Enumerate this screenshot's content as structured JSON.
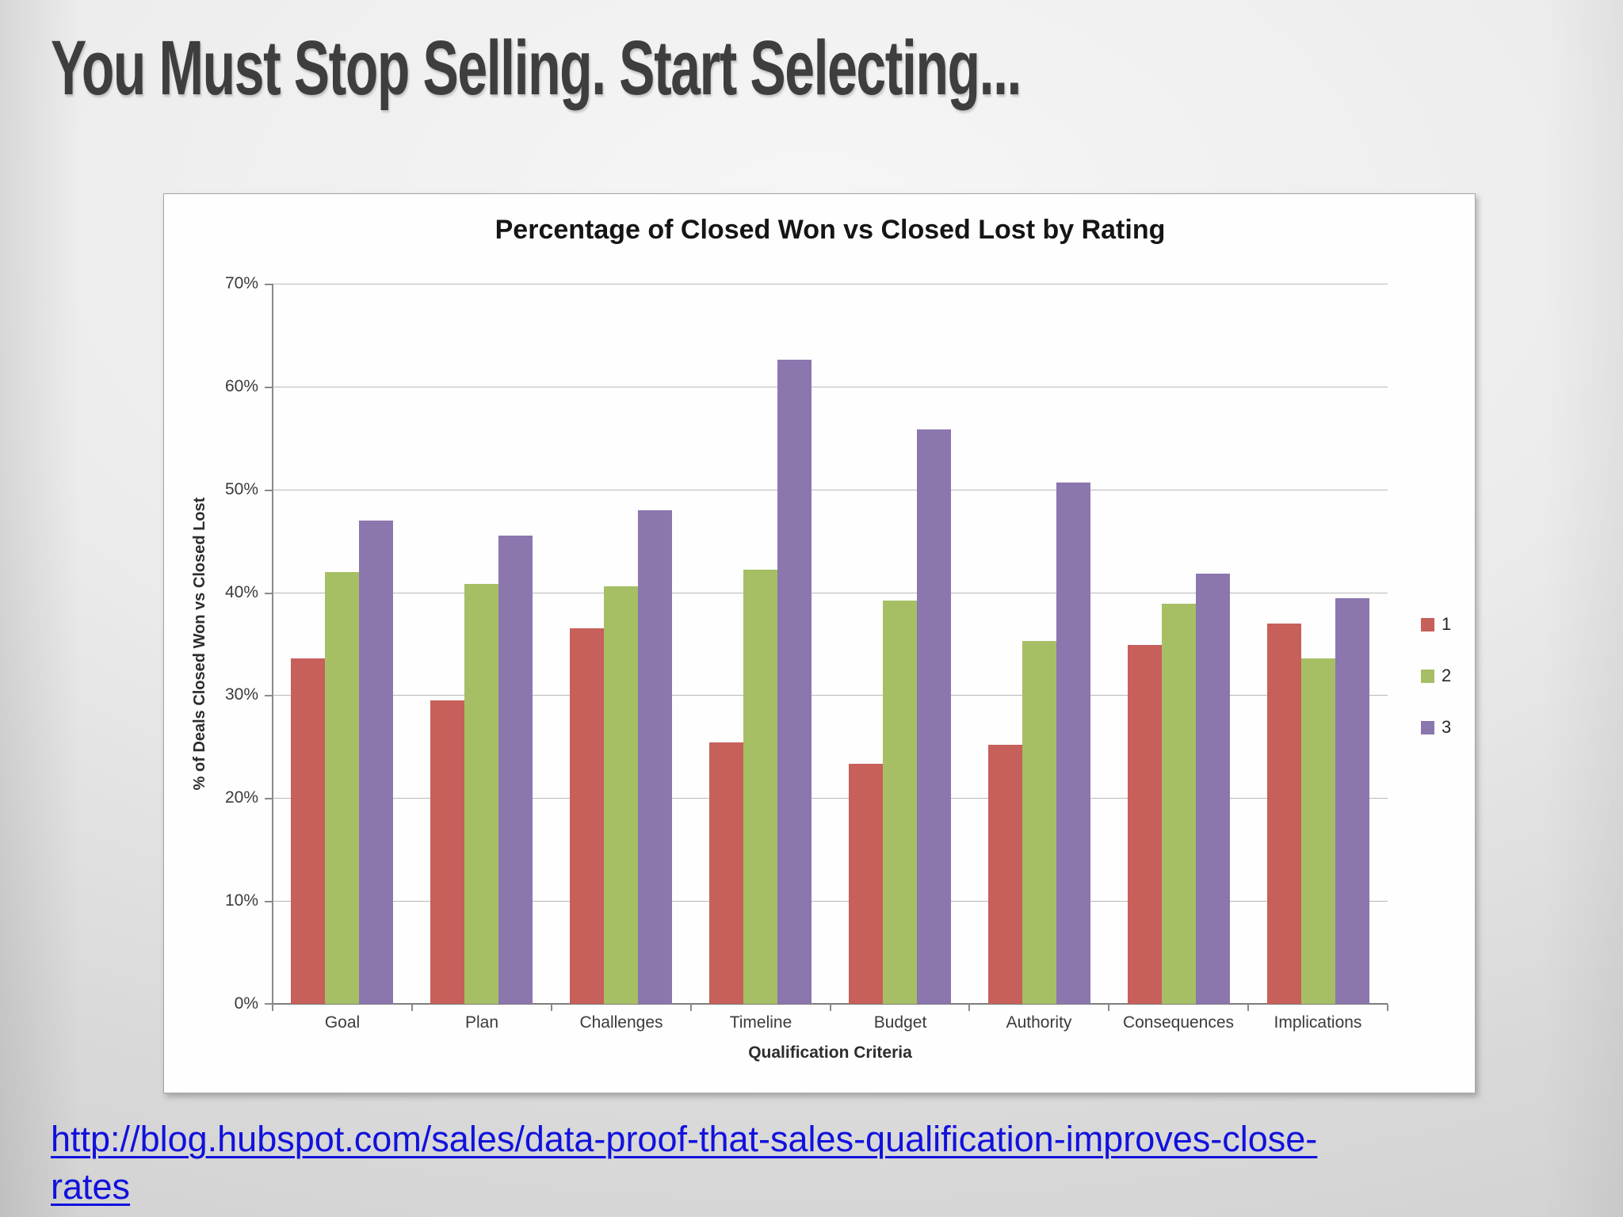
{
  "slide": {
    "title": "You Must Stop Selling. Start Selecting..."
  },
  "chart_data": {
    "type": "bar",
    "title": "Percentage of Closed Won vs Closed Lost by Rating",
    "xlabel": "Qualification Criteria",
    "ylabel": "% of Deals Closed Won vs Closed Lost",
    "categories": [
      "Goal",
      "Plan",
      "Challenges",
      "Timeline",
      "Budget",
      "Authority",
      "Consequences",
      "Implications"
    ],
    "series": [
      {
        "name": "1",
        "color": "#c75f5b",
        "values": [
          33.6,
          29.5,
          36.5,
          25.4,
          23.3,
          25.2,
          34.9,
          37.0
        ]
      },
      {
        "name": "2",
        "color": "#a6bf64",
        "values": [
          42.0,
          40.8,
          40.6,
          42.2,
          39.2,
          35.3,
          38.9,
          33.6
        ]
      },
      {
        "name": "3",
        "color": "#8b76ae",
        "values": [
          47.0,
          45.5,
          48.0,
          62.6,
          55.8,
          50.7,
          41.8,
          39.4
        ]
      }
    ],
    "ylim": [
      0,
      70
    ],
    "ytick_step": 10,
    "ytick_suffix": "%",
    "grid": true,
    "legend_position": "right",
    "colors": {
      "gridline": "#b9b9b9",
      "axis": "#8a8a8a",
      "chart_background": "#fefefe"
    }
  },
  "link": {
    "href": "http://blog.hubspot.com/sales/data-proof-that-sales-qualification-improves-close-rates",
    "lines": [
      "http://blog.hubspot.com/sales/data-proof-that-sales-qualification-improves-close-",
      "rates"
    ]
  }
}
